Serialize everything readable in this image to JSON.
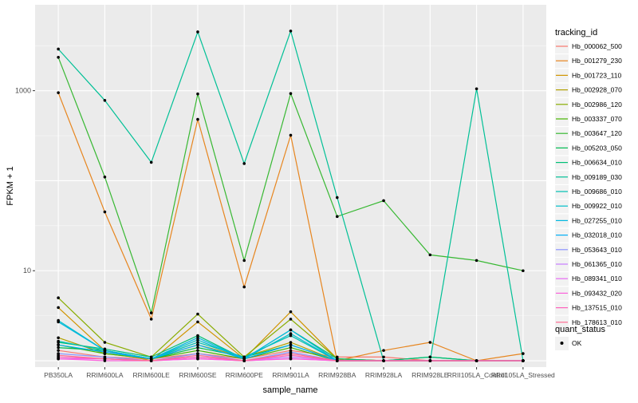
{
  "chart_data": {
    "type": "line",
    "title": "",
    "xlabel": "sample_name",
    "ylabel": "FPKM + 1",
    "y_scale": "log10",
    "ylim": [
      0.85,
      9000
    ],
    "y_ticks": [
      {
        "value": 10,
        "label": "10"
      },
      {
        "value": 1000,
        "label": "1000"
      }
    ],
    "categories": [
      "PB350LA",
      "RRIM600LA",
      "RRIM600LE",
      "RRIM600SE",
      "RRIM600PE",
      "RRIM901LA",
      "RRIM928BA",
      "RRIM928LA",
      "RRIM928LE",
      "RRII105LA_Control",
      "RRII105LA_Stressed"
    ],
    "legend_color": {
      "title": "tracking_id",
      "entries": [
        "Hb_000062_500",
        "Hb_001279_230",
        "Hb_001723_110",
        "Hb_002928_070",
        "Hb_002986_120",
        "Hb_003337_070",
        "Hb_003647_120",
        "Hb_005203_050",
        "Hb_006634_010",
        "Hb_009189_030",
        "Hb_009686_010",
        "Hb_009922_010",
        "Hb_027255_010",
        "Hb_032018_010",
        "Hb_053643_010",
        "Hb_061365_010",
        "Hb_089341_010",
        "Hb_093432_020",
        "Hb_137515_010",
        "Hb_178613_010"
      ]
    },
    "legend_shape": {
      "title": "quant_status",
      "entries": [
        "OK"
      ]
    },
    "series": [
      {
        "name": "Hb_000062_500",
        "color": "#F8766D",
        "values": [
          1.3,
          1.1,
          1.05,
          1.2,
          1.05,
          1.3,
          1.1,
          1.1,
          1.0,
          1.0,
          1.0
        ]
      },
      {
        "name": "Hb_001279_230",
        "color": "#E7851E",
        "values": [
          950,
          45,
          2.9,
          480,
          6.6,
          320,
          1.0,
          1.3,
          1.6,
          1.0,
          1.2
        ]
      },
      {
        "name": "Hb_001723_110",
        "color": "#D09400",
        "values": [
          3.9,
          1.3,
          1.0,
          2.7,
          1.05,
          3.5,
          1.05,
          1.0,
          1.0,
          1.0,
          1.0
        ]
      },
      {
        "name": "Hb_002928_070",
        "color": "#B2A100",
        "values": [
          1.8,
          1.2,
          1.05,
          1.5,
          1.1,
          1.6,
          1.0,
          1.0,
          1.0,
          1.0,
          1.0
        ]
      },
      {
        "name": "Hb_002986_120",
        "color": "#89AC00",
        "values": [
          5.0,
          1.6,
          1.1,
          3.3,
          1.1,
          2.9,
          1.05,
          1.0,
          1.0,
          1.0,
          1.0
        ]
      },
      {
        "name": "Hb_003337_070",
        "color": "#45B500",
        "values": [
          1.5,
          1.2,
          1.05,
          1.3,
          1.05,
          1.4,
          1.0,
          1.0,
          1.0,
          1.0,
          1.0
        ]
      },
      {
        "name": "Hb_003647_120",
        "color": "#37B832",
        "values": [
          2350,
          110,
          3.4,
          920,
          13,
          930,
          40,
          60,
          15,
          13,
          10
        ]
      },
      {
        "name": "Hb_005203_050",
        "color": "#00BC51",
        "values": [
          1.4,
          1.3,
          1.05,
          1.4,
          1.1,
          1.5,
          1.0,
          1.0,
          1.1,
          1.0,
          1.0
        ]
      },
      {
        "name": "Hb_006634_010",
        "color": "#00BF76",
        "values": [
          1.6,
          1.35,
          1.1,
          1.9,
          1.05,
          2.2,
          1.05,
          1.0,
          1.1,
          1.0,
          1.0
        ]
      },
      {
        "name": "Hb_009189_030",
        "color": "#00C096",
        "values": [
          2900,
          780,
          160,
          4500,
          155,
          4600,
          65,
          1.0,
          1.0,
          1050,
          1.0
        ]
      },
      {
        "name": "Hb_009686_010",
        "color": "#00C0B2",
        "values": [
          1.65,
          1.3,
          1.05,
          1.6,
          1.1,
          1.9,
          1.0,
          1.0,
          1.0,
          1.0,
          1.0
        ]
      },
      {
        "name": "Hb_009922_010",
        "color": "#00BECA",
        "values": [
          2.8,
          1.3,
          1.05,
          1.7,
          1.05,
          2.0,
          1.0,
          1.0,
          1.0,
          1.0,
          1.0
        ]
      },
      {
        "name": "Hb_027255_010",
        "color": "#00B8E0",
        "values": [
          2.7,
          1.3,
          1.05,
          1.8,
          1.05,
          2.2,
          1.0,
          1.0,
          1.0,
          1.0,
          1.0
        ]
      },
      {
        "name": "Hb_032018_010",
        "color": "#00AEF6",
        "values": [
          1.5,
          1.25,
          1.05,
          1.5,
          1.05,
          1.5,
          1.0,
          1.0,
          1.0,
          1.0,
          1.0
        ]
      },
      {
        "name": "Hb_053643_010",
        "color": "#8B93FF",
        "values": [
          1.2,
          1.1,
          1.0,
          1.2,
          1.0,
          1.25,
          1.0,
          1.0,
          1.0,
          1.0,
          1.0
        ]
      },
      {
        "name": "Hb_061365_010",
        "color": "#C77CFF",
        "values": [
          1.1,
          1.05,
          1.0,
          1.1,
          1.0,
          1.1,
          1.0,
          1.0,
          1.0,
          1.0,
          1.0
        ]
      },
      {
        "name": "Hb_089341_010",
        "color": "#E76BF3",
        "values": [
          1.05,
          1.05,
          1.0,
          1.05,
          1.0,
          1.05,
          1.0,
          1.0,
          1.0,
          1.0,
          1.0
        ]
      },
      {
        "name": "Hb_093432_020",
        "color": "#FA62DB",
        "values": [
          1.05,
          1.0,
          1.0,
          1.05,
          1.0,
          1.05,
          1.0,
          1.0,
          1.0,
          1.0,
          1.0
        ]
      },
      {
        "name": "Hb_137515_010",
        "color": "#FF62BC",
        "values": [
          1.1,
          1.05,
          1.0,
          1.1,
          1.0,
          1.15,
          1.0,
          1.0,
          1.0,
          1.0,
          1.0
        ]
      },
      {
        "name": "Hb_178613_010",
        "color": "#FF6C91",
        "values": [
          1.15,
          1.05,
          1.0,
          1.15,
          1.0,
          1.2,
          1.0,
          1.0,
          1.0,
          1.0,
          1.0
        ]
      }
    ]
  },
  "colors": {
    "panel_background": "#EBEBEB",
    "grid_major": "#FFFFFF",
    "text": "#4D4D4D",
    "point": "#000000"
  }
}
